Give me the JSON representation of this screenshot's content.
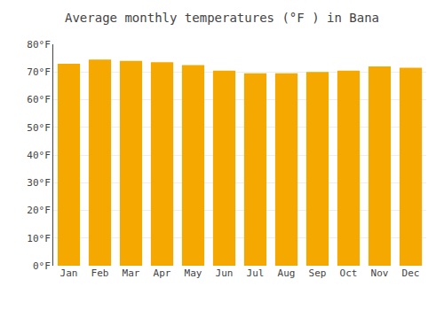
{
  "chart_data": {
    "type": "bar",
    "title": "Average monthly temperatures (°F ) in Bana",
    "categories": [
      "Jan",
      "Feb",
      "Mar",
      "Apr",
      "May",
      "Jun",
      "Jul",
      "Aug",
      "Sep",
      "Oct",
      "Nov",
      "Dec"
    ],
    "values": [
      73.0,
      74.5,
      74.0,
      73.5,
      72.5,
      70.5,
      69.5,
      69.5,
      70.0,
      70.5,
      72.0,
      71.5
    ],
    "color": "#F5A800",
    "ylim": [
      0,
      80
    ],
    "yticks": [
      {
        "value": 0,
        "label": "0°F"
      },
      {
        "value": 10,
        "label": "10°F"
      },
      {
        "value": 20,
        "label": "20°F"
      },
      {
        "value": 30,
        "label": "30°F"
      },
      {
        "value": 40,
        "label": "40°F"
      },
      {
        "value": 50,
        "label": "50°F"
      },
      {
        "value": 60,
        "label": "60°F"
      },
      {
        "value": 70,
        "label": "70°F"
      },
      {
        "value": 80,
        "label": "80°F"
      }
    ],
    "grid": true
  }
}
